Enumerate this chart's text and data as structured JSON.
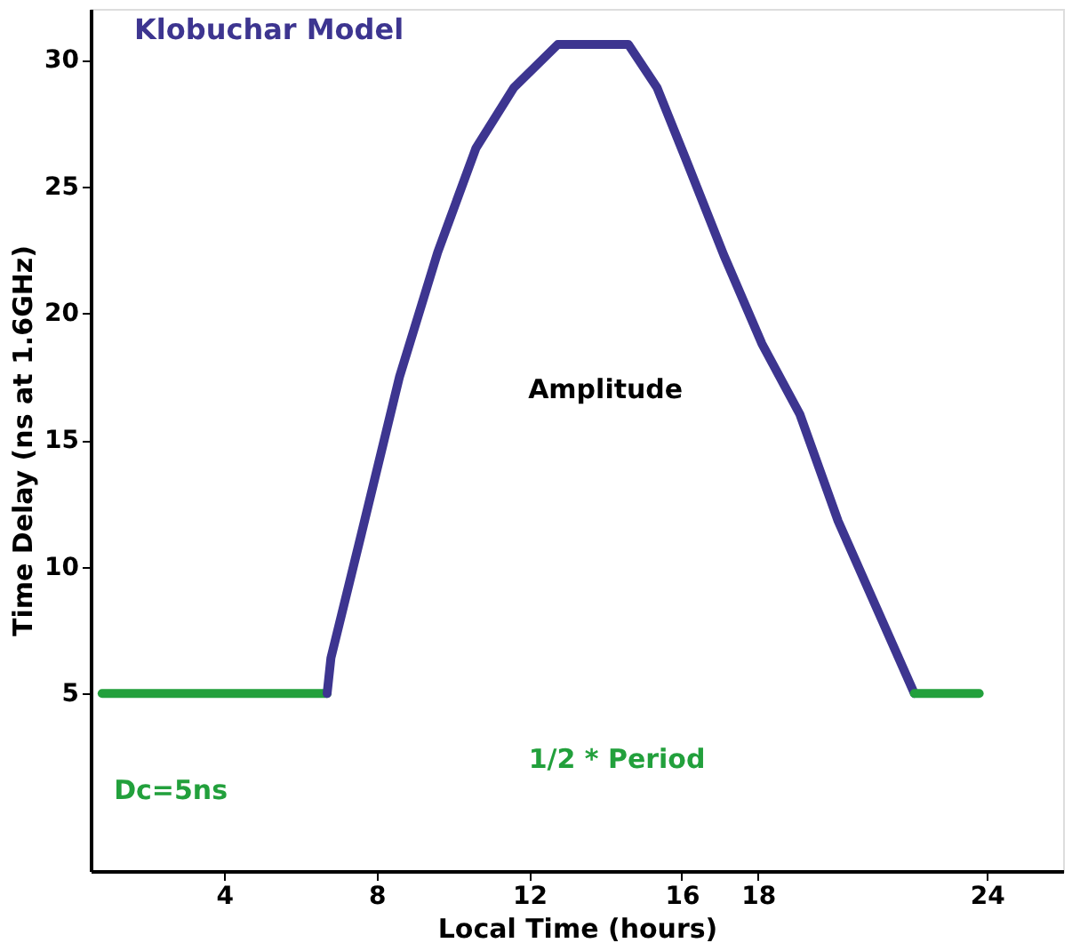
{
  "chart_data": {
    "type": "line",
    "title": "Klobuchar Model",
    "xlabel": "Local Time (hours)",
    "ylabel": "Time Delay (ns at 1.6GHz)",
    "xlim": [
      0.5,
      26
    ],
    "ylim": [
      -2,
      32
    ],
    "xticks": [
      4,
      8,
      12,
      16,
      18,
      24
    ],
    "yticks": [
      5,
      10,
      15,
      20,
      25,
      30
    ],
    "grid": false,
    "marker": "none",
    "line_style": "solid",
    "series": [
      {
        "color": "#22a03c",
        "x": [
          0.8,
          6.7
        ],
        "values": [
          5,
          5
        ]
      },
      {
        "color": "#3d3590",
        "x": [
          6.7,
          6.8,
          7.6,
          8.6,
          9.6,
          10.6,
          11.6,
          12.75,
          14.6,
          15.35,
          16.1,
          17.1,
          18.1,
          19.1,
          20.1,
          21.1,
          22.1
        ],
        "values": [
          5,
          6.4,
          11.3,
          17.5,
          22.4,
          26.5,
          28.9,
          30.6,
          30.6,
          28.9,
          26.1,
          22.3,
          18.8,
          16.0,
          11.8,
          8.4,
          5
        ]
      },
      {
        "color": "#22a03c",
        "x": [
          22.1,
          23.8
        ],
        "values": [
          5,
          5
        ]
      }
    ],
    "annotations": [
      "Amplitude",
      "1/2 * Period",
      "Dc=5ns"
    ]
  }
}
